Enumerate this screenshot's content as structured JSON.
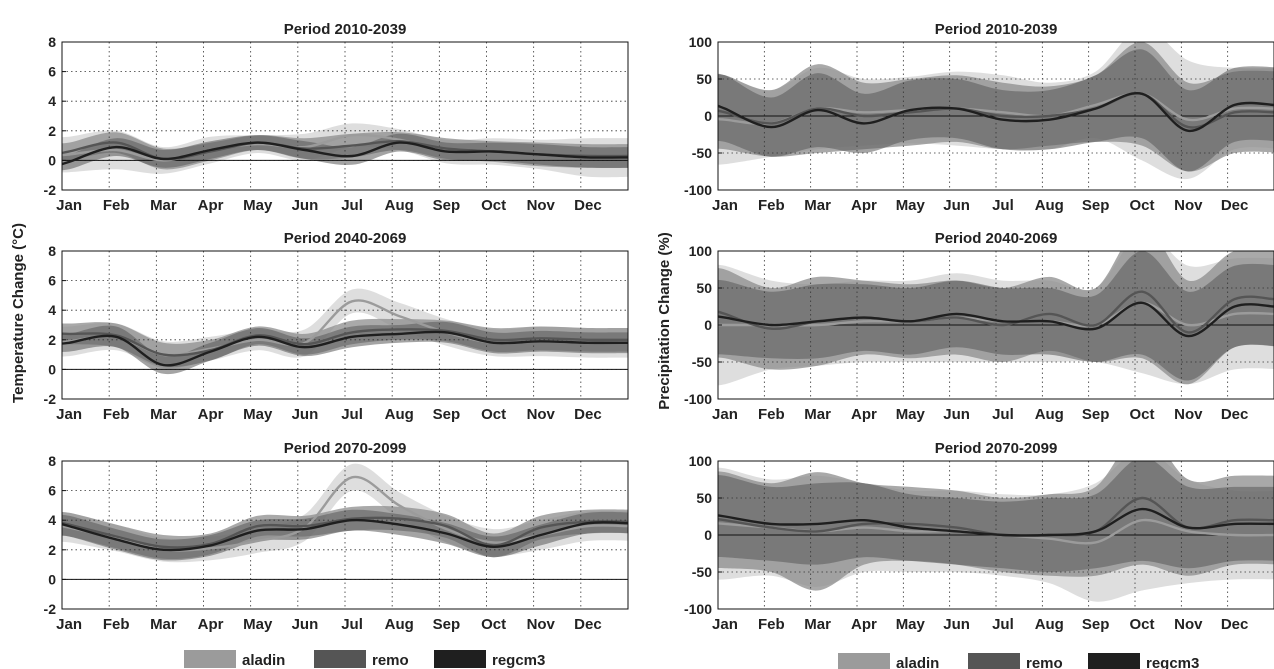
{
  "figure": {
    "ylabel_left": "Temperature Change (°C)",
    "ylabel_right": "Precipitation Change (%)",
    "legend": [
      {
        "label": "aladin",
        "color": "#9b9b9b"
      },
      {
        "label": "remo",
        "color": "#555555"
      },
      {
        "label": "regcm3",
        "color": "#1f1f1f"
      }
    ]
  },
  "chart_data": [
    {
      "type": "line",
      "variable": "temperature",
      "title": "Period 2010-2039",
      "categories": [
        "Jan",
        "Feb",
        "Mar",
        "Apr",
        "May",
        "Jun",
        "Jul",
        "Aug",
        "Sep",
        "Oct",
        "Nov",
        "Dec"
      ],
      "ylim": [
        -2,
        8
      ],
      "yticks": [
        -2,
        0,
        2,
        4,
        6,
        8
      ],
      "grid": true,
      "series": [
        {
          "name": "aladin",
          "values": [
            0.4,
            0.7,
            0.0,
            0.7,
            1.1,
            0.9,
            1.7,
            1.4,
            0.6,
            0.6,
            0.4,
            0.2
          ],
          "band": [
            1.2,
            1.3,
            0.9,
            0.9,
            0.6,
            0.9,
            0.8,
            0.7,
            0.8,
            0.9,
            1.0,
            1.3
          ]
        },
        {
          "name": "remo",
          "values": [
            0.6,
            1.2,
            0.1,
            0.6,
            1.2,
            0.8,
            1.0,
            1.3,
            0.8,
            0.6,
            0.4,
            0.3
          ],
          "band": [
            0.6,
            0.7,
            0.7,
            0.6,
            0.5,
            0.7,
            0.8,
            0.6,
            0.7,
            0.7,
            0.8,
            0.8
          ]
        },
        {
          "name": "regcm3",
          "values": [
            -0.1,
            0.9,
            0.1,
            0.7,
            1.2,
            0.7,
            0.3,
            1.2,
            0.6,
            0.6,
            0.4,
            0.2
          ],
          "band": [
            0.5,
            0.6,
            0.6,
            0.6,
            0.5,
            0.6,
            0.6,
            0.6,
            0.6,
            0.6,
            0.7,
            0.7
          ]
        }
      ]
    },
    {
      "type": "line",
      "variable": "precipitation",
      "title": "Period 2010-2039",
      "categories": [
        "Jan",
        "Feb",
        "Mar",
        "Apr",
        "May",
        "Jun",
        "Jul",
        "Aug",
        "Sep",
        "Oct",
        "Nov",
        "Dec"
      ],
      "ylim": [
        -100,
        100
      ],
      "yticks": [
        -100,
        -50,
        0,
        50,
        100
      ],
      "grid": true,
      "series": [
        {
          "name": "aladin",
          "values": [
            -5,
            -10,
            10,
            5,
            8,
            10,
            5,
            0,
            15,
            30,
            -5,
            10
          ],
          "band": [
            60,
            45,
            55,
            45,
            45,
            50,
            50,
            45,
            45,
            90,
            80,
            55
          ]
        },
        {
          "name": "remo",
          "values": [
            5,
            -10,
            10,
            0,
            5,
            10,
            0,
            0,
            10,
            30,
            -15,
            5
          ],
          "band": [
            50,
            45,
            60,
            45,
            45,
            45,
            45,
            40,
            45,
            70,
            60,
            55
          ]
        },
        {
          "name": "regcm3",
          "values": [
            10,
            -15,
            8,
            -10,
            8,
            10,
            -5,
            -5,
            10,
            30,
            -20,
            15
          ],
          "band": [
            45,
            40,
            50,
            40,
            40,
            40,
            40,
            40,
            45,
            60,
            55,
            50
          ]
        }
      ]
    },
    {
      "type": "line",
      "variable": "temperature",
      "title": "Period 2040-2069",
      "categories": [
        "Jan",
        "Feb",
        "Mar",
        "Apr",
        "May",
        "Jun",
        "Jul",
        "Aug",
        "Sep",
        "Oct",
        "Nov",
        "Dec"
      ],
      "ylim": [
        -2,
        8
      ],
      "yticks": [
        -2,
        0,
        2,
        4,
        6,
        8
      ],
      "grid": true,
      "series": [
        {
          "name": "aladin",
          "values": [
            1.9,
            2.2,
            1.0,
            1.4,
            2.0,
            1.8,
            4.6,
            3.6,
            2.5,
            1.8,
            1.9,
            1.8
          ],
          "band": [
            1.0,
            0.9,
            0.9,
            0.8,
            0.7,
            0.9,
            0.8,
            0.9,
            0.9,
            0.9,
            1.0,
            1.0
          ]
        },
        {
          "name": "remo",
          "values": [
            2.4,
            2.3,
            1.0,
            1.3,
            2.3,
            1.7,
            2.5,
            2.7,
            2.6,
            2.0,
            2.1,
            2.0
          ],
          "band": [
            0.7,
            0.8,
            0.8,
            0.7,
            0.6,
            0.7,
            0.8,
            0.7,
            0.7,
            0.8,
            0.8,
            0.8
          ]
        },
        {
          "name": "regcm3",
          "values": [
            1.8,
            2.2,
            0.3,
            1.2,
            2.2,
            1.5,
            2.2,
            2.4,
            2.5,
            1.8,
            1.9,
            1.8
          ],
          "band": [
            0.6,
            0.7,
            0.6,
            0.6,
            0.6,
            0.6,
            0.7,
            0.6,
            0.7,
            0.7,
            0.7,
            0.7
          ]
        }
      ]
    },
    {
      "type": "line",
      "variable": "precipitation",
      "title": "Period 2040-2069",
      "categories": [
        "Jan",
        "Feb",
        "Mar",
        "Apr",
        "May",
        "Jun",
        "Jul",
        "Aug",
        "Sep",
        "Oct",
        "Nov",
        "Dec"
      ],
      "ylim": [
        -100,
        100
      ],
      "yticks": [
        -100,
        -50,
        0,
        50,
        100
      ],
      "grid": true,
      "series": [
        {
          "name": "aladin",
          "values": [
            0,
            0,
            0,
            5,
            5,
            10,
            5,
            5,
            0,
            30,
            0,
            15
          ],
          "band": [
            80,
            60,
            55,
            55,
            55,
            60,
            55,
            55,
            50,
            95,
            80,
            75
          ]
        },
        {
          "name": "remo",
          "values": [
            15,
            -5,
            5,
            10,
            5,
            10,
            0,
            15,
            0,
            45,
            -10,
            35
          ],
          "band": [
            60,
            55,
            60,
            50,
            50,
            50,
            50,
            50,
            50,
            90,
            70,
            65
          ]
        },
        {
          "name": "regcm3",
          "values": [
            10,
            0,
            5,
            10,
            5,
            15,
            5,
            5,
            -5,
            30,
            -15,
            25
          ],
          "band": [
            50,
            45,
            50,
            45,
            45,
            45,
            45,
            45,
            45,
            70,
            60,
            55
          ]
        }
      ]
    },
    {
      "type": "line",
      "variable": "temperature",
      "title": "Period 2070-2099",
      "categories": [
        "Jan",
        "Feb",
        "Mar",
        "Apr",
        "May",
        "Jun",
        "Jul",
        "Aug",
        "Sep",
        "Oct",
        "Nov",
        "Dec"
      ],
      "ylim": [
        -2,
        8
      ],
      "yticks": [
        -2,
        0,
        2,
        4,
        6,
        8
      ],
      "grid": true,
      "series": [
        {
          "name": "aladin",
          "values": [
            3.5,
            2.8,
            2.0,
            2.1,
            2.6,
            3.5,
            6.9,
            5.0,
            3.4,
            2.5,
            3.0,
            3.6
          ],
          "band": [
            1.0,
            0.9,
            0.8,
            0.8,
            0.8,
            0.9,
            0.9,
            0.9,
            0.9,
            0.9,
            1.0,
            1.0
          ]
        },
        {
          "name": "remo",
          "values": [
            3.7,
            2.9,
            2.2,
            2.4,
            3.6,
            3.6,
            4.1,
            4.1,
            3.6,
            2.3,
            3.5,
            3.9
          ],
          "band": [
            0.8,
            0.8,
            0.8,
            0.7,
            0.7,
            0.7,
            0.8,
            0.8,
            0.8,
            0.8,
            0.8,
            0.8
          ]
        },
        {
          "name": "regcm3",
          "values": [
            3.6,
            2.7,
            2.0,
            2.3,
            3.3,
            3.4,
            4.0,
            3.7,
            3.1,
            2.2,
            3.0,
            3.8
          ],
          "band": [
            0.7,
            0.7,
            0.7,
            0.7,
            0.7,
            0.7,
            0.7,
            0.7,
            0.7,
            0.7,
            0.7,
            0.7
          ]
        }
      ]
    },
    {
      "type": "line",
      "variable": "precipitation",
      "title": "Period 2070-2099",
      "categories": [
        "Jan",
        "Feb",
        "Mar",
        "Apr",
        "May",
        "Jun",
        "Jul",
        "Aug",
        "Sep",
        "Oct",
        "Nov",
        "Dec"
      ],
      "ylim": [
        -100,
        100
      ],
      "yticks": [
        -100,
        -50,
        0,
        50,
        100
      ],
      "grid": true,
      "series": [
        {
          "name": "aladin",
          "values": [
            15,
            10,
            5,
            10,
            5,
            5,
            0,
            -5,
            -10,
            20,
            5,
            0
          ],
          "band": [
            75,
            65,
            75,
            60,
            55,
            55,
            55,
            60,
            80,
            95,
            70,
            60
          ]
        },
        {
          "name": "remo",
          "values": [
            20,
            10,
            5,
            15,
            15,
            10,
            0,
            0,
            5,
            50,
            10,
            20
          ],
          "band": [
            65,
            60,
            80,
            55,
            50,
            50,
            50,
            55,
            60,
            90,
            65,
            60
          ]
        },
        {
          "name": "regcm3",
          "values": [
            25,
            15,
            15,
            20,
            10,
            5,
            0,
            0,
            5,
            35,
            10,
            15
          ],
          "band": [
            55,
            50,
            55,
            50,
            45,
            45,
            45,
            50,
            50,
            70,
            55,
            50
          ]
        }
      ]
    }
  ]
}
